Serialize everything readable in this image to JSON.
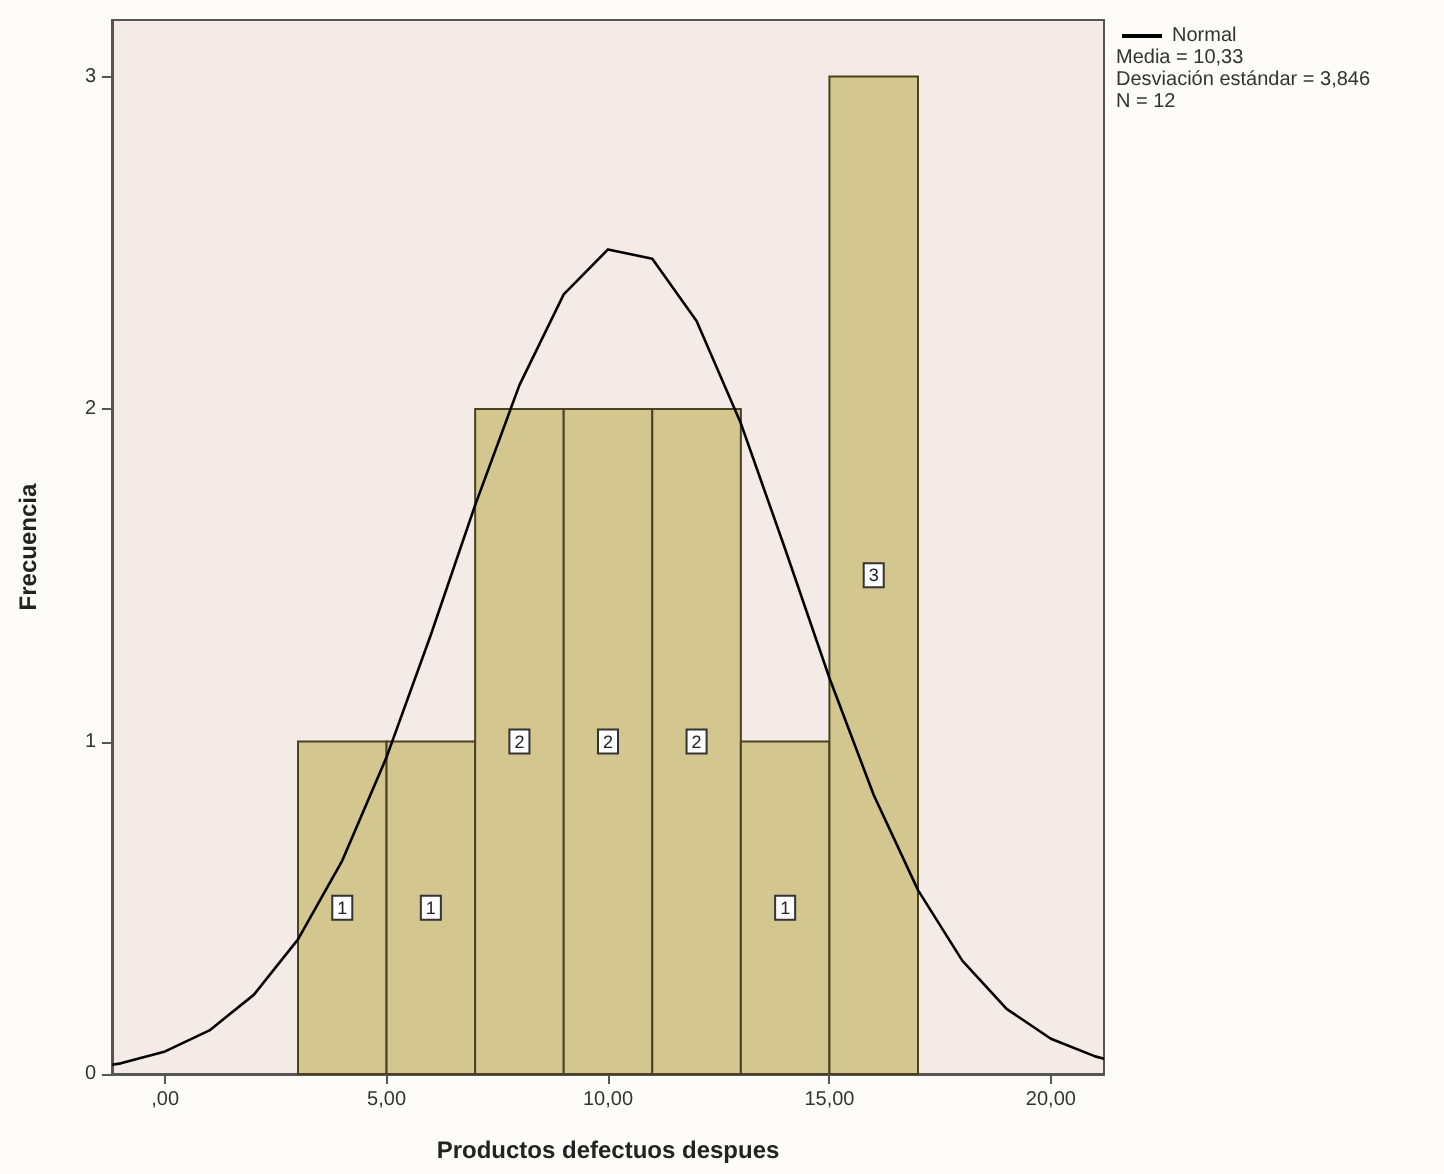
{
  "chart_data": {
    "type": "histogram",
    "xlabel": "Productos defectuos despues",
    "ylabel": "Frecuencia",
    "bins": [
      3,
      5,
      7,
      9,
      11,
      13,
      15,
      17
    ],
    "series": [
      {
        "color": "#d3c68e",
        "values": [
          1,
          1,
          2,
          2,
          2,
          1,
          3
        ],
        "value_labels": [
          "1",
          "1",
          "2",
          "2",
          "2",
          "1",
          "3"
        ]
      },
      {
        "type": "line",
        "name": "Normal",
        "color": "#000000",
        "marker": "none",
        "x": [
          -1.2,
          -1,
          0,
          1,
          2,
          3,
          4,
          5,
          6,
          7,
          8,
          9,
          10,
          11,
          12,
          13,
          14,
          15,
          16,
          17,
          18,
          19,
          20,
          21,
          21.2
        ],
        "values": [
          0.028,
          0.032,
          0.068,
          0.131,
          0.238,
          0.405,
          0.642,
          0.953,
          1.321,
          1.711,
          2.072,
          2.345,
          2.48,
          2.452,
          2.265,
          1.957,
          1.579,
          1.191,
          0.839,
          0.553,
          0.341,
          0.196,
          0.106,
          0.053,
          0.046
        ]
      }
    ],
    "xlim": [
      -1.2,
      21.2
    ],
    "xticks": [
      {
        "value": 0,
        "label": ",00"
      },
      {
        "value": 5,
        "label": "5,00"
      },
      {
        "value": 10,
        "label": "10,00"
      },
      {
        "value": 15,
        "label": "15,00"
      },
      {
        "value": 20,
        "label": "20,00"
      }
    ],
    "ylim": [
      0,
      3.17
    ],
    "yticks": [
      0,
      1,
      2,
      3
    ],
    "grid": false,
    "legend": "top right",
    "annotations": [
      "Media = 10,33",
      "Desviación estándar = 3,846",
      "N = 12"
    ]
  }
}
